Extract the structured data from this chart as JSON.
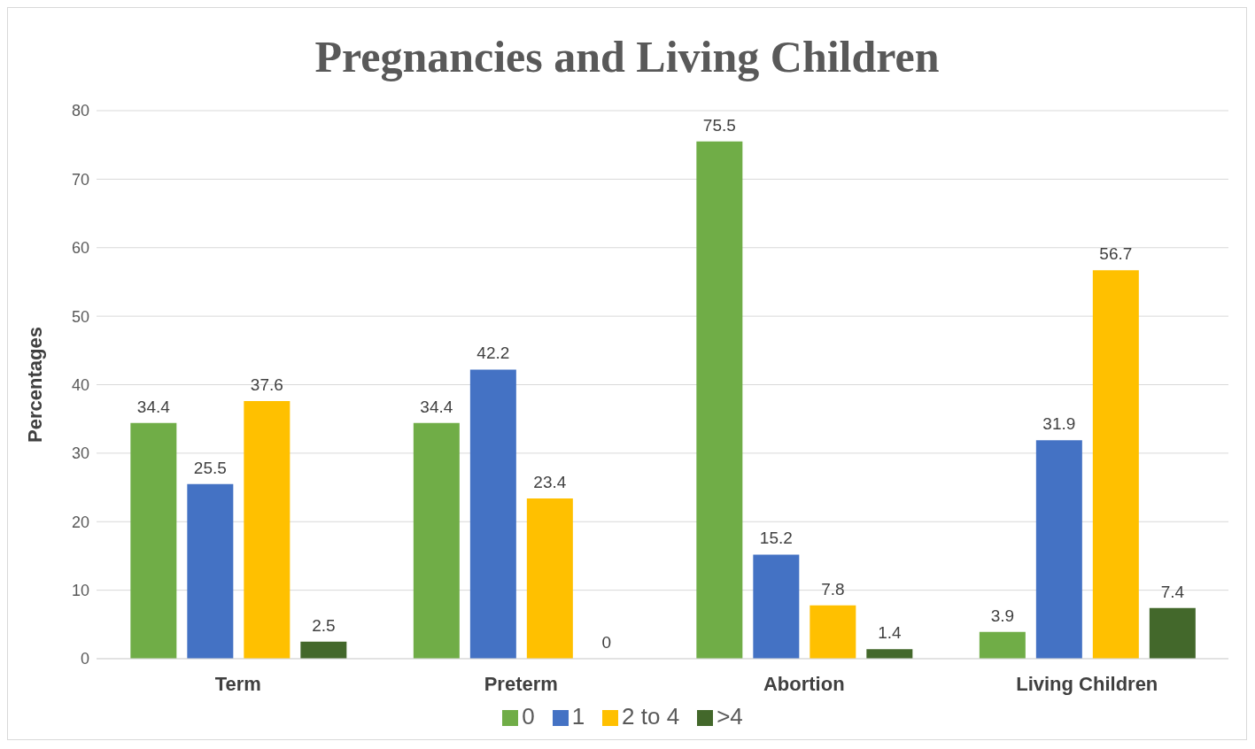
{
  "chart_data": {
    "type": "bar",
    "title": "Pregnancies and Living Children",
    "ylabel": "Percentages",
    "categories": [
      "Term",
      "Preterm",
      "Abortion",
      "Living Children"
    ],
    "series": [
      {
        "name": "0",
        "color": "#70ad47",
        "values": [
          34.4,
          34.4,
          75.5,
          3.9
        ]
      },
      {
        "name": "1",
        "color": "#4472c4",
        "values": [
          25.5,
          42.2,
          15.2,
          31.9
        ]
      },
      {
        "name": "2 to 4",
        "color": "#ffc000",
        "values": [
          37.6,
          23.4,
          7.8,
          56.7
        ]
      },
      {
        "name": ">4",
        "color": "#43682b",
        "values": [
          2.5,
          0,
          1.4,
          7.4
        ]
      }
    ],
    "ylim": [
      0,
      80
    ],
    "yticks": [
      0,
      10,
      20,
      30,
      40,
      50,
      60,
      70,
      80
    ],
    "grid": "y",
    "legend": "bottom",
    "data_labels": true
  }
}
